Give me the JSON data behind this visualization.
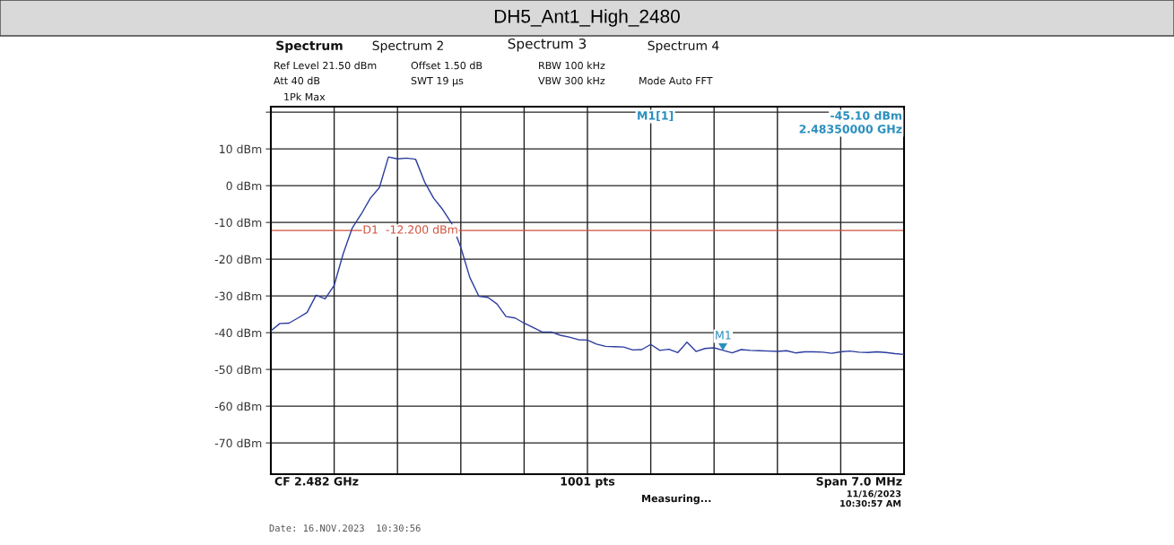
{
  "chart_data": {
    "type": "line",
    "title": "DH5_Ant1_High_2480",
    "categories": [
      null,
      null,
      null,
      null,
      null,
      null,
      null,
      null,
      null,
      null,
      null,
      null,
      null,
      null,
      null,
      null,
      null,
      null,
      null,
      null,
      null,
      null,
      null,
      null,
      null,
      null,
      null,
      null,
      null,
      null,
      null,
      null,
      null,
      null,
      null,
      null,
      null,
      null,
      null,
      null,
      null,
      null,
      null,
      null,
      null,
      null,
      null,
      null,
      null,
      null,
      null,
      null,
      null,
      null,
      null,
      null,
      null,
      null,
      null,
      null,
      null,
      null,
      null,
      null,
      null,
      null,
      null,
      null,
      null,
      null,
      null
    ],
    "series": [
      {
        "color": "#2b3c9e",
        "values": [
          -39.5,
          -37.5,
          -37.4,
          -36.0,
          -34.5,
          -29.8,
          -30.8,
          -27.1,
          -18.5,
          -11.5,
          -7.7,
          -3.4,
          -0.5,
          7.8,
          7.3,
          7.5,
          7.2,
          1.0,
          -3.4,
          -6.5,
          -10.3,
          -16.8,
          -25.0,
          -30.1,
          -30.4,
          -32.2,
          -35.6,
          -36.0,
          -37.4,
          -38.6,
          -39.8,
          -39.8,
          -40.7,
          -41.2,
          -41.9,
          -42.0,
          -43.1,
          -43.7,
          -43.8,
          -43.9,
          -44.7,
          -44.6,
          -43.2,
          -44.8,
          -44.5,
          -45.4,
          -42.6,
          -45.1,
          -44.3,
          -44.1,
          -44.8,
          -45.5,
          -44.6,
          -44.8,
          -44.9,
          -45.0,
          -45.1,
          -44.9,
          -45.5,
          -45.2,
          -45.2,
          -45.3,
          -45.6,
          -45.2,
          -45.0,
          -45.3,
          -45.4,
          -45.2,
          -45.4,
          -45.7,
          -45.9
        ]
      }
    ],
    "ylim": [
      -78.5,
      21.5
    ],
    "yticks": [
      {
        "value": 20,
        "label": null
      },
      {
        "value": 10,
        "label": "10 dBm"
      },
      {
        "value": 0,
        "label": "0 dBm"
      },
      {
        "value": -10,
        "label": "-10 dBm"
      },
      {
        "value": -20,
        "label": "-20 dBm"
      },
      {
        "value": -30,
        "label": "-30 dBm"
      },
      {
        "value": -40,
        "label": "-40 dBm"
      },
      {
        "value": -50,
        "label": "-50 dBm"
      },
      {
        "value": -60,
        "label": "-60 dBm"
      },
      {
        "value": -70,
        "label": "-70 dBm"
      }
    ],
    "grid": true,
    "tick_labels": "y",
    "marker": "none",
    "line_style": "solid",
    "ref_lines": [
      {
        "axis": "y",
        "value": -12.2,
        "label": "D1  -12.200 dBm",
        "color": "#d0503c"
      }
    ],
    "annotations": [
      "M1",
      "M1[1]",
      "-45.10 dBm",
      "2.48350000 GHz",
      "Spectrum",
      "Spectrum 2",
      "Spectrum 3",
      "Spectrum 4",
      "Ref Level 21.50 dBm",
      "Offset 1.50 dB",
      "RBW 100 kHz",
      "Att 40 dB",
      "SWT 19 µs",
      "VBW 300 kHz",
      "Mode Auto FFT",
      "1Pk Max",
      "CF 2.482 GHz",
      "1001 pts",
      "Span 7.0 MHz",
      "Measuring...",
      "11/16/2023\n10:30:57 AM",
      "Date: 16.NOV.2023  10:30:56"
    ]
  }
}
